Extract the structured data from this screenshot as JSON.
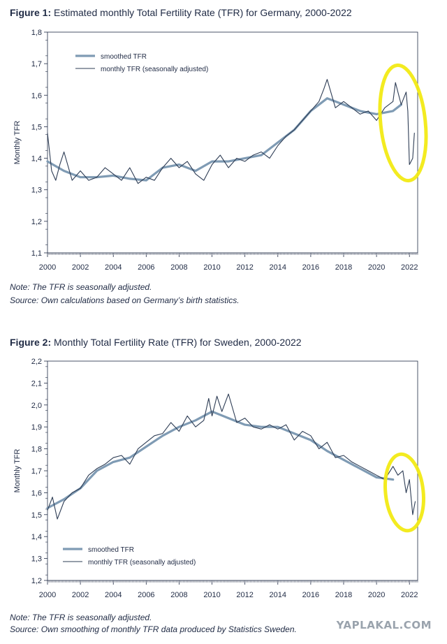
{
  "figures": [
    {
      "title_bold": "Figure 1:",
      "title_rest": "Estimated monthly Total Fertility Rate (TFR) for Germany, 2000-2022",
      "note": "Note: The TFR is seasonally adjusted.",
      "source": "Source: Own calculations based on Germany’s birth statistics."
    },
    {
      "title_bold": "Figure 2:",
      "title_rest": "Monthly Total Fertility Rate (TFR) for Sweden, 2000-2022",
      "note": "Note: The TFR is seasonally adjusted.",
      "source": "Source: Own smoothing of monthly TFR data produced by Statistics Sweden."
    }
  ],
  "watermark": "YAPLAKAL.COM",
  "colors": {
    "smoothed": "#7f9bb4",
    "monthly": "#2e3d55",
    "highlight": "#f2ea14",
    "axis": "#1f2a44"
  },
  "chart_data": [
    {
      "type": "line",
      "ylabel": "Monthly TFR",
      "xlim": [
        2000,
        2022.5
      ],
      "ylim": [
        1.1,
        1.8
      ],
      "x_ticks": [
        "2000",
        "2002",
        "2004",
        "2006",
        "2008",
        "2010",
        "2012",
        "2014",
        "2016",
        "2018",
        "2020",
        "2022"
      ],
      "y_ticks": [
        "1,1",
        "1,2",
        "1,3",
        "1,4",
        "1,5",
        "1,6",
        "1,7",
        "1,8"
      ],
      "legend": [
        "smoothed TFR",
        "monthly TFR (seasonally adjusted)"
      ],
      "legend_position": "top-left",
      "series": [
        {
          "name": "smoothed TFR",
          "x": [
            2000,
            2001,
            2002,
            2003,
            2004,
            2005,
            2006,
            2007,
            2008,
            2009,
            2010,
            2011,
            2012,
            2013,
            2014,
            2015,
            2016,
            2017,
            2018,
            2019,
            2020,
            2021,
            2021.5
          ],
          "values": [
            1.39,
            1.36,
            1.34,
            1.34,
            1.345,
            1.335,
            1.33,
            1.37,
            1.38,
            1.36,
            1.39,
            1.39,
            1.4,
            1.41,
            1.45,
            1.49,
            1.55,
            1.59,
            1.57,
            1.55,
            1.54,
            1.55,
            1.57
          ]
        },
        {
          "name": "monthly TFR (seasonally adjusted)",
          "x": [
            2000,
            2000.25,
            2000.5,
            2000.75,
            2001,
            2001.5,
            2002,
            2002.5,
            2003,
            2003.5,
            2004,
            2004.5,
            2005,
            2005.5,
            2006,
            2006.5,
            2007,
            2007.5,
            2008,
            2008.5,
            2009,
            2009.5,
            2010,
            2010.5,
            2011,
            2011.5,
            2012,
            2012.5,
            2013,
            2013.5,
            2014,
            2014.5,
            2015,
            2015.5,
            2016,
            2016.5,
            2016.8,
            2017,
            2017.5,
            2018,
            2018.5,
            2019,
            2019.5,
            2020,
            2020.5,
            2021,
            2021.15,
            2021.5,
            2021.8,
            2021.9,
            2022,
            2022.2,
            2022.3
          ],
          "values": [
            1.48,
            1.36,
            1.33,
            1.38,
            1.42,
            1.33,
            1.36,
            1.33,
            1.34,
            1.37,
            1.35,
            1.33,
            1.37,
            1.32,
            1.34,
            1.33,
            1.37,
            1.4,
            1.37,
            1.39,
            1.35,
            1.33,
            1.38,
            1.41,
            1.37,
            1.4,
            1.39,
            1.41,
            1.42,
            1.4,
            1.44,
            1.47,
            1.49,
            1.52,
            1.55,
            1.58,
            1.62,
            1.65,
            1.56,
            1.58,
            1.56,
            1.54,
            1.55,
            1.52,
            1.56,
            1.58,
            1.64,
            1.57,
            1.61,
            1.55,
            1.38,
            1.4,
            1.48
          ]
        }
      ]
    },
    {
      "type": "line",
      "ylabel": "Monthly TFR",
      "xlim": [
        2000,
        2022.5
      ],
      "ylim": [
        1.2,
        2.2
      ],
      "x_ticks": [
        "2000",
        "2002",
        "2004",
        "2006",
        "2008",
        "2010",
        "2012",
        "2014",
        "2016",
        "2018",
        "2020",
        "2022"
      ],
      "y_ticks": [
        "1,2",
        "1,3",
        "1,4",
        "1,5",
        "1,6",
        "1,7",
        "1,8",
        "1,9",
        "2,0",
        "2,1",
        "2,2"
      ],
      "legend": [
        "smoothed TFR",
        "monthly TFR (seasonally adjusted)"
      ],
      "legend_position": "bottom-left",
      "series": [
        {
          "name": "smoothed TFR",
          "x": [
            2000,
            2001,
            2002,
            2003,
            2004,
            2005,
            2006,
            2007,
            2008,
            2009,
            2010,
            2011,
            2012,
            2013,
            2014,
            2015,
            2016,
            2017,
            2018,
            2019,
            2020,
            2021
          ],
          "values": [
            1.53,
            1.57,
            1.62,
            1.7,
            1.74,
            1.76,
            1.81,
            1.86,
            1.9,
            1.93,
            1.97,
            1.94,
            1.91,
            1.9,
            1.9,
            1.87,
            1.84,
            1.79,
            1.75,
            1.71,
            1.67,
            1.66
          ]
        },
        {
          "name": "monthly TFR (seasonally adjusted)",
          "x": [
            2000,
            2000.3,
            2000.6,
            2001,
            2001.5,
            2002,
            2002.5,
            2003,
            2003.5,
            2004,
            2004.5,
            2005,
            2005.5,
            2006,
            2006.5,
            2007,
            2007.5,
            2008,
            2008.5,
            2009,
            2009.5,
            2009.8,
            2010,
            2010.3,
            2010.6,
            2011,
            2011.5,
            2012,
            2012.5,
            2013,
            2013.5,
            2014,
            2014.5,
            2015,
            2015.5,
            2016,
            2016.5,
            2017,
            2017.5,
            2018,
            2018.5,
            2019,
            2019.5,
            2020,
            2020.5,
            2021,
            2021.3,
            2021.6,
            2021.8,
            2022,
            2022.2,
            2022.35
          ],
          "values": [
            1.52,
            1.58,
            1.48,
            1.56,
            1.6,
            1.62,
            1.68,
            1.71,
            1.73,
            1.76,
            1.77,
            1.73,
            1.8,
            1.83,
            1.86,
            1.87,
            1.92,
            1.88,
            1.95,
            1.9,
            1.93,
            2.03,
            1.95,
            2.04,
            1.97,
            2.05,
            1.92,
            1.94,
            1.9,
            1.89,
            1.91,
            1.89,
            1.91,
            1.84,
            1.88,
            1.86,
            1.8,
            1.83,
            1.76,
            1.77,
            1.74,
            1.72,
            1.7,
            1.68,
            1.66,
            1.72,
            1.68,
            1.7,
            1.6,
            1.66,
            1.5,
            1.56
          ]
        }
      ]
    }
  ]
}
